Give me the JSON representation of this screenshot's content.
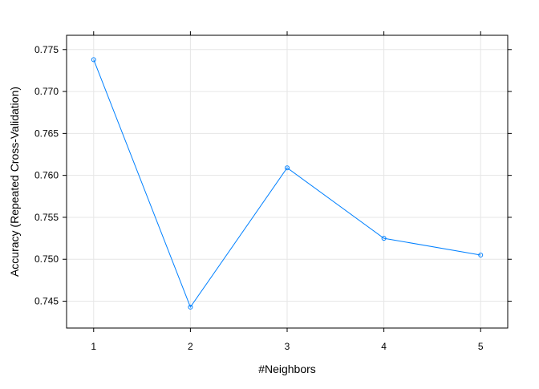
{
  "chart_data": {
    "type": "line",
    "title": "",
    "xlabel": "#Neighbors",
    "ylabel": "Accuracy (Repeated Cross-Validation)",
    "x": [
      1,
      2,
      3,
      4,
      5
    ],
    "series": [
      {
        "values": [
          0.7738,
          0.7443,
          0.7609,
          0.7525,
          0.7505
        ],
        "color": "#0080ff",
        "marker": "open-circle"
      }
    ],
    "xticks": [
      "1",
      "2",
      "3",
      "4",
      "5"
    ],
    "yticks": [
      "0.745",
      "0.750",
      "0.755",
      "0.760",
      "0.765",
      "0.770",
      "0.775"
    ],
    "xlim": [
      0.72,
      5.28
    ],
    "ylim": [
      0.7418,
      0.7767
    ],
    "grid": true,
    "legend": "none",
    "colors": {
      "line": "#0080ff",
      "grid": "#e6e6e6",
      "frame": "#000000"
    }
  }
}
